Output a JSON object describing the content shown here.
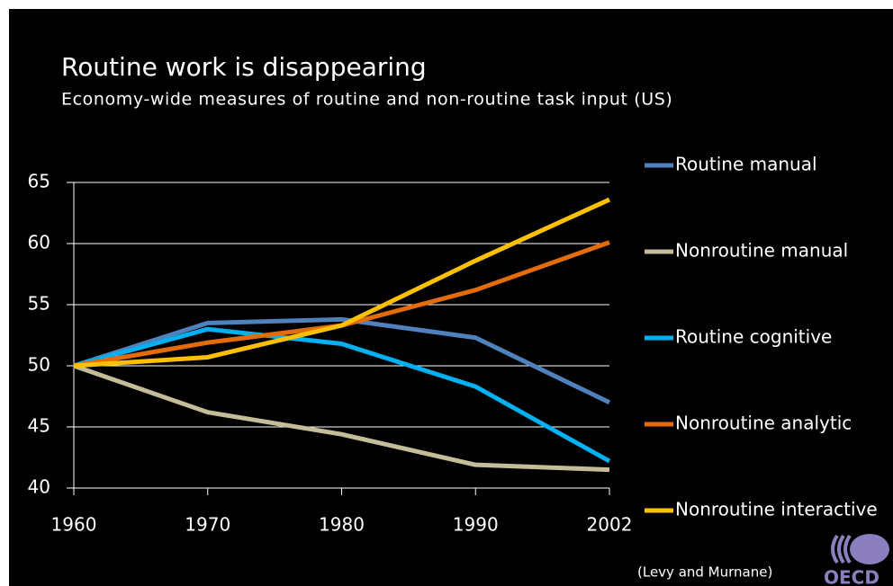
{
  "chart_data": {
    "type": "line",
    "title": "Routine work is disappearing",
    "subtitle": "Economy-wide measures of routine and non-routine task input (US)",
    "categories": [
      "1960",
      "1970",
      "1980",
      "1990",
      "2002"
    ],
    "series": [
      {
        "name": "Routine manual",
        "color": "#4f81bd",
        "values": [
          50,
          53.5,
          53.8,
          52.3,
          47.0
        ]
      },
      {
        "name": "Nonroutine manual",
        "color": "#c4bd97",
        "values": [
          50,
          46.2,
          44.4,
          41.9,
          41.5
        ]
      },
      {
        "name": "Routine cognitive",
        "color": "#00b0f0",
        "values": [
          50,
          53.0,
          51.8,
          48.3,
          42.2
        ]
      },
      {
        "name": "Nonroutine analytic",
        "color": "#e36c09",
        "values": [
          50,
          51.9,
          53.3,
          56.2,
          60.1
        ]
      },
      {
        "name": "Nonroutine interactive",
        "color": "#ffc000",
        "values": [
          50,
          50.7,
          53.3,
          58.6,
          63.6
        ]
      }
    ],
    "ylim": [
      40,
      65
    ],
    "yticks": [
      40,
      45,
      50,
      55,
      60,
      65
    ],
    "grid": true,
    "source": "(Levy and Murnane)",
    "logo": "OECD"
  }
}
